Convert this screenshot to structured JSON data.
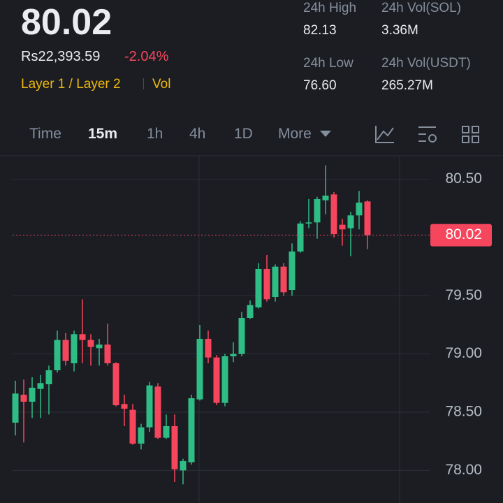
{
  "header": {
    "price": "80.02",
    "fiat_price": "Rs22,393.59",
    "change": "-2.04%",
    "tags": [
      "Layer 1 / Layer 2",
      "Vol"
    ],
    "stats": [
      {
        "label": "24h High",
        "value": "82.13"
      },
      {
        "label": "24h Vol(SOL)",
        "value": "3.36M"
      },
      {
        "label": "24h Low",
        "value": "76.60"
      },
      {
        "label": "24h Vol(USDT)",
        "value": "265.27M"
      }
    ]
  },
  "tabs": {
    "items": [
      "Time",
      "15m",
      "1h",
      "4h",
      "1D",
      "More"
    ],
    "active": 1
  },
  "chart_data": {
    "type": "candlestick",
    "up_color": "#2ebd85",
    "down_color": "#f6465d",
    "last_price": 80.02,
    "ylim": [
      77.72,
      80.69
    ],
    "yticks": [
      {
        "value": 78,
        "label": "78.00"
      },
      {
        "value": 78.5,
        "label": "78.50"
      },
      {
        "value": 79,
        "label": "79.00"
      },
      {
        "value": 79.5,
        "label": "79.50"
      },
      {
        "value": 80.5,
        "label": "80.50"
      }
    ],
    "grid": true,
    "candles": [
      {
        "open": 78.41,
        "high": 78.77,
        "low": 78.3,
        "close": 78.66
      },
      {
        "open": 78.65,
        "high": 78.78,
        "low": 78.24,
        "close": 78.59
      },
      {
        "open": 78.59,
        "high": 78.8,
        "low": 78.45,
        "close": 78.71
      },
      {
        "open": 78.7,
        "high": 78.82,
        "low": 78.45,
        "close": 78.75
      },
      {
        "open": 78.74,
        "high": 78.9,
        "low": 78.48,
        "close": 78.86
      },
      {
        "open": 78.86,
        "high": 79.2,
        "low": 78.84,
        "close": 79.12
      },
      {
        "open": 79.12,
        "high": 79.18,
        "low": 78.9,
        "close": 78.94
      },
      {
        "open": 78.92,
        "high": 79.2,
        "low": 78.85,
        "close": 79.17
      },
      {
        "open": 79.17,
        "high": 79.47,
        "low": 78.92,
        "close": 79.12
      },
      {
        "open": 79.12,
        "high": 79.17,
        "low": 78.9,
        "close": 79.06
      },
      {
        "open": 79.05,
        "high": 79.13,
        "low": 78.9,
        "close": 79.08
      },
      {
        "open": 79.08,
        "high": 79.26,
        "low": 78.9,
        "close": 78.92
      },
      {
        "open": 78.92,
        "high": 78.93,
        "low": 78.55,
        "close": 78.56
      },
      {
        "open": 78.57,
        "high": 78.65,
        "low": 78.38,
        "close": 78.53
      },
      {
        "open": 78.52,
        "high": 78.57,
        "low": 78.22,
        "close": 78.23
      },
      {
        "open": 78.23,
        "high": 78.4,
        "low": 78.18,
        "close": 78.37
      },
      {
        "open": 78.37,
        "high": 78.76,
        "low": 78.33,
        "close": 78.73
      },
      {
        "open": 78.72,
        "high": 78.75,
        "low": 78.27,
        "close": 78.28
      },
      {
        "open": 78.28,
        "high": 78.48,
        "low": 78.27,
        "close": 78.38
      },
      {
        "open": 78.38,
        "high": 78.48,
        "low": 77.9,
        "close": 78.01
      },
      {
        "open": 78.0,
        "high": 78.1,
        "low": 77.88,
        "close": 78.08
      },
      {
        "open": 78.07,
        "high": 78.65,
        "low": 78.05,
        "close": 78.62
      },
      {
        "open": 78.61,
        "high": 79.25,
        "low": 78.6,
        "close": 79.13
      },
      {
        "open": 79.13,
        "high": 79.2,
        "low": 78.92,
        "close": 78.97
      },
      {
        "open": 78.97,
        "high": 78.99,
        "low": 78.56,
        "close": 78.58
      },
      {
        "open": 78.58,
        "high": 79.0,
        "low": 78.55,
        "close": 78.98
      },
      {
        "open": 78.98,
        "high": 79.1,
        "low": 78.93,
        "close": 79.0
      },
      {
        "open": 79.0,
        "high": 79.36,
        "low": 78.98,
        "close": 79.31
      },
      {
        "open": 79.31,
        "high": 79.46,
        "low": 79.3,
        "close": 79.42
      },
      {
        "open": 79.4,
        "high": 79.78,
        "low": 79.39,
        "close": 79.73
      },
      {
        "open": 79.73,
        "high": 79.85,
        "low": 79.45,
        "close": 79.47
      },
      {
        "open": 79.49,
        "high": 79.77,
        "low": 79.45,
        "close": 79.75
      },
      {
        "open": 79.75,
        "high": 79.78,
        "low": 79.5,
        "close": 79.53
      },
      {
        "open": 79.55,
        "high": 79.95,
        "low": 79.5,
        "close": 79.88
      },
      {
        "open": 79.88,
        "high": 80.14,
        "low": 79.87,
        "close": 80.12
      },
      {
        "open": 80.12,
        "high": 80.33,
        "low": 80.08,
        "close": 80.13
      },
      {
        "open": 80.13,
        "high": 80.35,
        "low": 79.99,
        "close": 80.33
      },
      {
        "open": 80.32,
        "high": 80.62,
        "low": 80.2,
        "close": 80.36
      },
      {
        "open": 80.37,
        "high": 80.39,
        "low": 80.0,
        "close": 80.03
      },
      {
        "open": 80.11,
        "high": 80.16,
        "low": 79.93,
        "close": 80.07
      },
      {
        "open": 80.08,
        "high": 80.22,
        "low": 79.84,
        "close": 80.19
      },
      {
        "open": 80.19,
        "high": 80.4,
        "low": 80.07,
        "close": 80.3
      },
      {
        "open": 80.31,
        "high": 80.32,
        "low": 79.9,
        "close": 80.02
      }
    ]
  }
}
